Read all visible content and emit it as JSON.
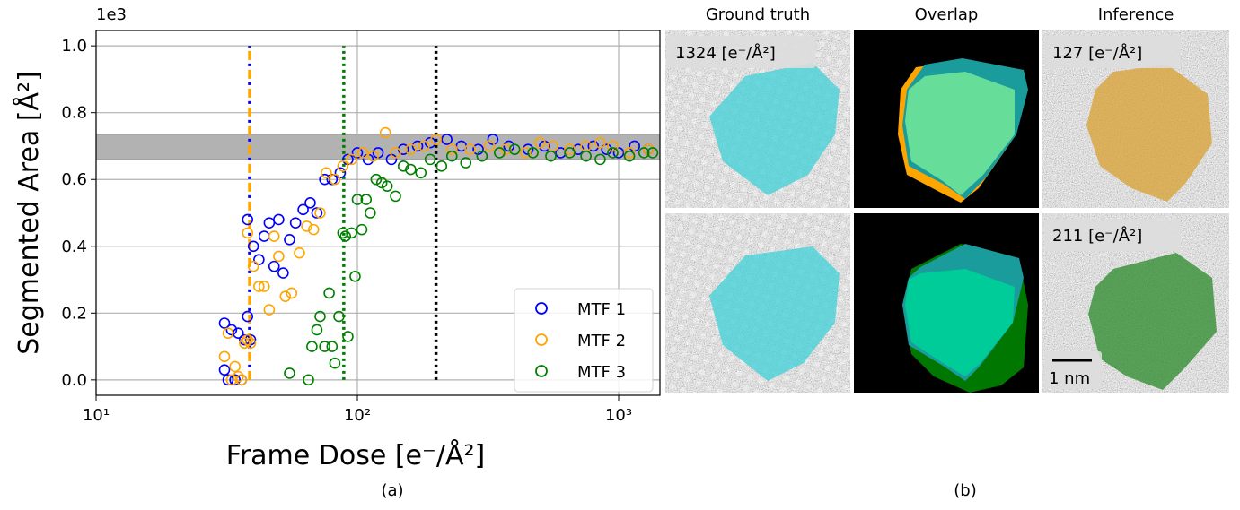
{
  "chart_data": {
    "type": "scatter",
    "ylabel": "Segmented Area [Å²]",
    "xlabel": "Frame Dose [e⁻/Å²]",
    "y_offset_label": "1e3",
    "panel_label": "(a)",
    "log_x": true,
    "grid": true,
    "xlim": [
      10,
      1439
    ],
    "ylim": [
      -0.046,
      1.046
    ],
    "xticks": [
      {
        "value": 10,
        "label": "10¹"
      },
      {
        "value": 100,
        "label": "10²"
      },
      {
        "value": 1000,
        "label": "10³"
      }
    ],
    "yticks": [
      {
        "value": 0,
        "label": "0.0"
      },
      {
        "value": 0.2,
        "label": "0.2"
      },
      {
        "value": 0.4,
        "label": "0.4"
      },
      {
        "value": 0.6,
        "label": "0.6"
      },
      {
        "value": 0.8,
        "label": "0.8"
      },
      {
        "value": 1.0,
        "label": "1.0"
      }
    ],
    "band": [
      0.66,
      0.735
    ],
    "band_color": "#999999",
    "vline_range": [
      0,
      1
    ],
    "vlines": [
      {
        "x": 38.7,
        "colors": [
          "#ffa500",
          "#0000ff"
        ],
        "style": "dashdot"
      },
      {
        "x": 88.7,
        "colors": [
          "#008000"
        ],
        "style": "dotted"
      },
      {
        "x": 200,
        "colors": [
          "#000000"
        ],
        "style": "dotted"
      }
    ],
    "legend": "lower right",
    "series": [
      {
        "name": "MTF 1",
        "color": "#0000ff",
        "x": [
          31,
          31,
          32,
          33,
          34,
          35,
          36,
          37,
          38,
          38,
          39,
          40,
          42,
          44,
          46,
          48,
          50,
          52,
          55,
          58,
          62,
          66,
          70,
          75,
          80,
          86,
          92,
          100,
          110,
          120,
          135,
          150,
          170,
          190,
          220,
          250,
          290,
          330,
          380,
          450,
          520,
          600,
          700,
          800,
          900,
          1000,
          1150,
          1300
        ],
        "values": [
          0.03,
          0.17,
          0.0,
          0.15,
          0.0,
          0.14,
          0.0,
          0.12,
          0.48,
          0.19,
          0.12,
          0.4,
          0.36,
          0.43,
          0.47,
          0.34,
          0.48,
          0.32,
          0.42,
          0.47,
          0.51,
          0.53,
          0.5,
          0.6,
          0.6,
          0.62,
          0.66,
          0.68,
          0.66,
          0.68,
          0.66,
          0.69,
          0.7,
          0.71,
          0.72,
          0.7,
          0.69,
          0.72,
          0.7,
          0.69,
          0.7,
          0.68,
          0.69,
          0.7,
          0.69,
          0.68,
          0.7,
          0.69
        ]
      },
      {
        "name": "MTF 2",
        "color": "#ffa500",
        "x": [
          31,
          32,
          33,
          34,
          35,
          36,
          37,
          38,
          38,
          39,
          40,
          42,
          44,
          46,
          48,
          50,
          53,
          56,
          60,
          64,
          68,
          72,
          76,
          82,
          88,
          95,
          105,
          115,
          128,
          140,
          160,
          180,
          200,
          230,
          270,
          320,
          370,
          440,
          500,
          560,
          650,
          750,
          850,
          950,
          1100,
          1300
        ],
        "values": [
          0.07,
          0.14,
          0.0,
          0.04,
          0.01,
          0.0,
          0.11,
          0.44,
          0.12,
          0.11,
          0.34,
          0.28,
          0.28,
          0.21,
          0.43,
          0.37,
          0.25,
          0.26,
          0.38,
          0.46,
          0.45,
          0.5,
          0.62,
          0.6,
          0.64,
          0.66,
          0.68,
          0.67,
          0.74,
          0.68,
          0.69,
          0.7,
          0.72,
          0.69,
          0.69,
          0.7,
          0.69,
          0.68,
          0.71,
          0.7,
          0.69,
          0.7,
          0.71,
          0.7,
          0.68,
          0.69
        ]
      },
      {
        "name": "MTF 3",
        "color": "#008000",
        "x": [
          55,
          65,
          67,
          70,
          72,
          75,
          78,
          80,
          82,
          85,
          88,
          90,
          92,
          95,
          98,
          100,
          104,
          108,
          112,
          118,
          124,
          130,
          140,
          150,
          160,
          175,
          190,
          210,
          230,
          260,
          300,
          350,
          400,
          470,
          550,
          650,
          750,
          850,
          950,
          1100,
          1250,
          1350
        ],
        "values": [
          0.02,
          0.0,
          0.1,
          0.15,
          0.19,
          0.1,
          0.26,
          0.1,
          0.05,
          0.19,
          0.44,
          0.43,
          0.13,
          0.44,
          0.31,
          0.54,
          0.45,
          0.54,
          0.5,
          0.6,
          0.59,
          0.58,
          0.55,
          0.64,
          0.63,
          0.62,
          0.66,
          0.64,
          0.67,
          0.65,
          0.67,
          0.68,
          0.69,
          0.68,
          0.67,
          0.68,
          0.67,
          0.66,
          0.68,
          0.67,
          0.68,
          0.68
        ]
      }
    ]
  },
  "panel_b": {
    "columns": [
      "Ground truth",
      "Overlap",
      "Inference"
    ],
    "ground_truth_dose": "1324 [e⁻/Å²]",
    "inference_doses": [
      "127 [e⁻/Å²]",
      "211 [e⁻/Å²]"
    ],
    "scale_bar": "1 nm",
    "panel_label": "(b)"
  }
}
